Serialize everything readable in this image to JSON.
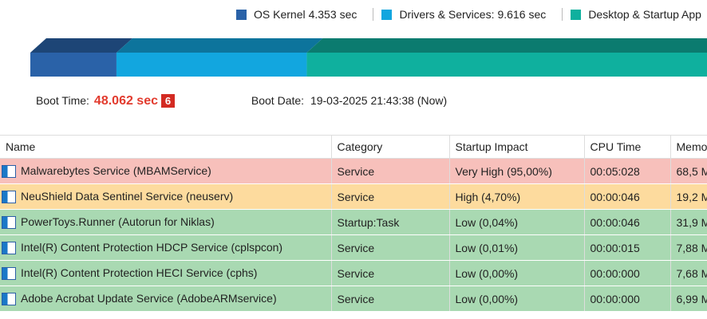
{
  "legend": [
    {
      "label": "OS Kernel",
      "value": 4.353,
      "unit": "sec",
      "color": "#2a62a8"
    },
    {
      "label": "Drivers & Services:",
      "value": 9.616,
      "unit": "sec",
      "color": "#12a6df"
    },
    {
      "label": "Desktop & Startup App",
      "color": "#0fb09e"
    }
  ],
  "boot": {
    "time_label": "Boot Time:",
    "time_value": "48.062 sec",
    "badge": "6",
    "date_label": "Boot Date:",
    "date_value": "19-03-2025 21:43:38 (Now)"
  },
  "table": {
    "columns": [
      "Name",
      "Category",
      "Startup Impact",
      "CPU Time",
      "Memo"
    ],
    "rows": [
      {
        "cells": [
          "Malwarebytes Service (MBAMService)",
          "Service",
          "Very High (95,00%)",
          "00:05:028",
          "68,5 M"
        ],
        "color": "#f7c0bb"
      },
      {
        "cells": [
          "NeuShield Data Sentinel Service (neuserv)",
          "Service",
          "High (4,70%)",
          "00:00:046",
          "19,2 M"
        ],
        "color": "#fddb9e"
      },
      {
        "cells": [
          "PowerToys.Runner (Autorun for Niklas)",
          "Startup:Task",
          "Low (0,04%)",
          "00:00:046",
          "31,9 M"
        ],
        "color": "#a9d9b2"
      },
      {
        "cells": [
          "Intel(R) Content Protection HDCP Service (cplspcon)",
          "Service",
          "Low (0,01%)",
          "00:00:015",
          "7,88 M"
        ],
        "color": "#a9d9b2"
      },
      {
        "cells": [
          "Intel(R) Content Protection HECI Service (cphs)",
          "Service",
          "Low (0,00%)",
          "00:00:000",
          "7,68 M"
        ],
        "color": "#a9d9b2"
      },
      {
        "cells": [
          "Adobe Acrobat Update Service (AdobeARMservice)",
          "Service",
          "Low (0,00%)",
          "00:00:000",
          "6,99 M"
        ],
        "color": "#a9d9b2"
      }
    ]
  }
}
